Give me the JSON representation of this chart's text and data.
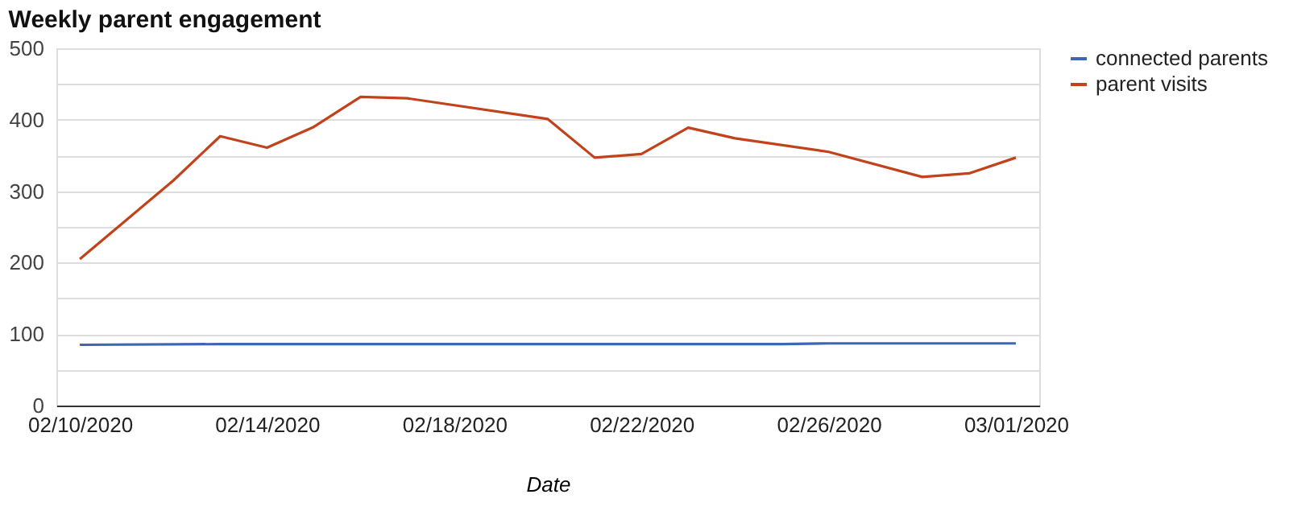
{
  "chart_data": {
    "type": "line",
    "title": "Weekly parent engagement",
    "xlabel": "Date",
    "xlim": [
      "2020-02-09T12:00",
      "2020-03-01T12:00"
    ],
    "xticks": [
      {
        "value": "2020-02-10",
        "label": "02/10/2020"
      },
      {
        "value": "2020-02-14",
        "label": "02/14/2020"
      },
      {
        "value": "2020-02-18",
        "label": "02/18/2020"
      },
      {
        "value": "2020-02-22",
        "label": "02/22/2020"
      },
      {
        "value": "2020-02-26",
        "label": "02/26/2020"
      },
      {
        "value": "2020-03-01",
        "label": "03/01/2020"
      }
    ],
    "ylim": [
      0,
      500
    ],
    "yticks": [
      0,
      {
        "value": 50,
        "label": null
      },
      100,
      {
        "value": 150,
        "label": null
      },
      200,
      {
        "value": 250,
        "label": null
      },
      300,
      {
        "value": 350,
        "label": null
      },
      400,
      {
        "value": 450,
        "label": null
      },
      500
    ],
    "grid": "y",
    "legend": "top right",
    "line_style": "solid",
    "marker": "none",
    "series": [
      {
        "name": "connected parents",
        "color": "#3d67b0",
        "x": [
          "2020-02-10",
          "2020-02-13",
          "2020-02-25",
          "2020-02-26",
          "2020-03-01"
        ],
        "values": [
          85,
          86,
          86,
          87,
          87
        ]
      },
      {
        "name": "parent visits",
        "color": "#c1421b",
        "x": [
          "2020-02-10",
          "2020-02-12",
          "2020-02-13",
          "2020-02-14",
          "2020-02-15",
          "2020-02-16",
          "2020-02-17",
          "2020-02-20",
          "2020-02-21",
          "2020-02-22",
          "2020-02-23",
          "2020-02-24",
          "2020-02-26",
          "2020-02-28",
          "2020-02-29",
          "2020-03-01"
        ],
        "values": [
          205,
          315,
          377,
          361,
          390,
          432,
          430,
          401,
          347,
          352,
          389,
          374,
          355,
          320,
          325,
          347
        ]
      }
    ]
  }
}
